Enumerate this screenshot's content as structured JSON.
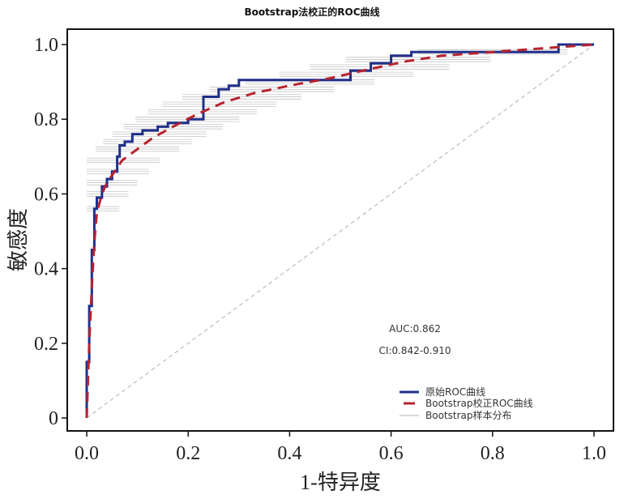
{
  "chart_data": {
    "type": "line",
    "title": "Bootstrap法校正的ROC曲线",
    "xlabel": "1-特异度",
    "ylabel": "敏感度",
    "xlim": [
      0,
      1
    ],
    "ylim": [
      0,
      1
    ],
    "x_ticks": [
      "0.0",
      "0.2",
      "0.4",
      "0.6",
      "0.8",
      "1.0"
    ],
    "x_tick_values": [
      0,
      0.2,
      0.4,
      0.6,
      0.8,
      1.0
    ],
    "y_ticks": [
      "0",
      "0.2",
      "0.4",
      "0.6",
      "0.8",
      "1.0"
    ],
    "y_tick_values": [
      0,
      0.2,
      0.4,
      0.6,
      0.8,
      1.0
    ],
    "grid": false,
    "annotations": {
      "auc": "AUC:0.862",
      "ci": "CI:0.842-0.910"
    },
    "legend": {
      "placement": "bottom-right",
      "entries": [
        {
          "label": "原始ROC曲线",
          "color": "#1f2f8a",
          "style": "solid"
        },
        {
          "label": "Bootstrap校正ROC曲线",
          "color": "#b8232f",
          "style": "dashed"
        },
        {
          "label": "Bootstrap样本分布",
          "color": "#b0b0b0",
          "style": "thin"
        }
      ]
    },
    "series": [
      {
        "name": "原始ROC曲线",
        "color": "#1f2f8a",
        "x": [
          0,
          0,
          0.005,
          0.005,
          0.01,
          0.01,
          0.015,
          0.015,
          0.02,
          0.02,
          0.03,
          0.03,
          0.04,
          0.04,
          0.05,
          0.05,
          0.06,
          0.06,
          0.065,
          0.065,
          0.075,
          0.075,
          0.09,
          0.09,
          0.11,
          0.11,
          0.14,
          0.14,
          0.16,
          0.16,
          0.2,
          0.2,
          0.23,
          0.23,
          0.26,
          0.26,
          0.28,
          0.28,
          0.3,
          0.3,
          0.52,
          0.52,
          0.56,
          0.56,
          0.6,
          0.6,
          0.64,
          0.64,
          0.93,
          0.93,
          1.0
        ],
        "y": [
          0,
          0.15,
          0.15,
          0.3,
          0.3,
          0.45,
          0.45,
          0.56,
          0.56,
          0.59,
          0.59,
          0.62,
          0.62,
          0.64,
          0.64,
          0.66,
          0.66,
          0.7,
          0.7,
          0.73,
          0.73,
          0.74,
          0.74,
          0.76,
          0.76,
          0.77,
          0.77,
          0.78,
          0.78,
          0.79,
          0.79,
          0.8,
          0.8,
          0.86,
          0.86,
          0.88,
          0.88,
          0.89,
          0.89,
          0.905,
          0.905,
          0.93,
          0.93,
          0.95,
          0.95,
          0.97,
          0.97,
          0.98,
          0.98,
          1.0,
          1.0
        ]
      },
      {
        "name": "Bootstrap校正ROC曲线",
        "color": "#b8232f",
        "x": [
          0,
          0.005,
          0.01,
          0.015,
          0.02,
          0.03,
          0.04,
          0.05,
          0.07,
          0.1,
          0.13,
          0.17,
          0.22,
          0.27,
          0.33,
          0.4,
          0.48,
          0.56,
          0.63,
          0.7,
          0.8,
          0.9,
          1.0
        ],
        "y": [
          0,
          0.2,
          0.35,
          0.47,
          0.55,
          0.6,
          0.63,
          0.65,
          0.69,
          0.72,
          0.75,
          0.78,
          0.815,
          0.845,
          0.87,
          0.89,
          0.91,
          0.935,
          0.955,
          0.97,
          0.98,
          0.99,
          1.0
        ]
      }
    ],
    "reference_line": {
      "x": [
        0,
        1
      ],
      "y": [
        0,
        1
      ],
      "color": "#b0b0b0",
      "style": "dashed"
    },
    "bootstrap_distribution_y": [
      0.56,
      0.6,
      0.63,
      0.66,
      0.69,
      0.72,
      0.74,
      0.76,
      0.78,
      0.8,
      0.82,
      0.84,
      0.86,
      0.88,
      0.9,
      0.92,
      0.94,
      0.96,
      0.98
    ]
  }
}
